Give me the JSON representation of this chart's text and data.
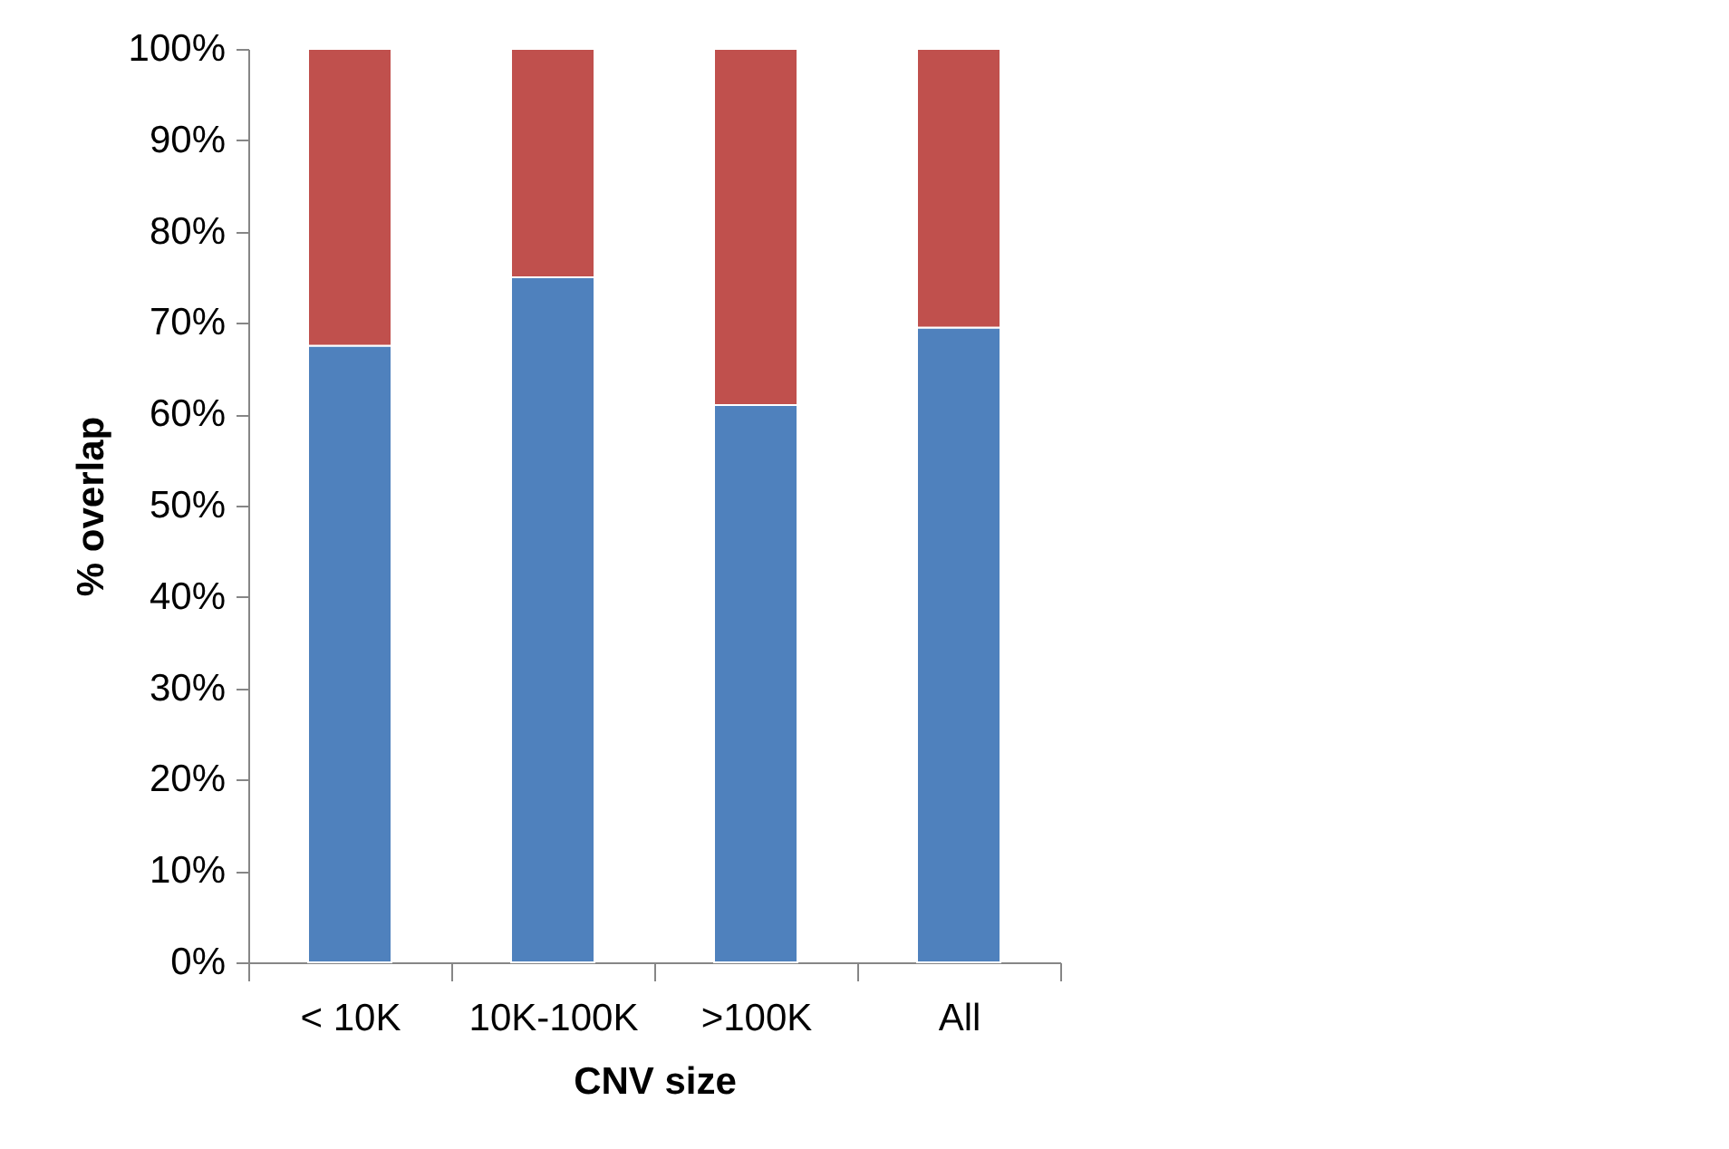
{
  "chart_data": {
    "type": "bar",
    "stacked": true,
    "xlabel": "CNV size",
    "ylabel": "% overlap",
    "categories": [
      "< 10K",
      "10K-100K",
      ">100K",
      "All"
    ],
    "series": [
      {
        "color": "#4f81bd",
        "values": [
          67.5,
          75,
          61,
          69.5
        ]
      },
      {
        "color": "#c0504d",
        "values": [
          32.5,
          25,
          39,
          30.5
        ]
      }
    ],
    "ylim": [
      0,
      100
    ],
    "yticks": [
      {
        "value": 0,
        "label": "0%"
      },
      {
        "value": 10,
        "label": "10%"
      },
      {
        "value": 20,
        "label": "20%"
      },
      {
        "value": 30,
        "label": "30%"
      },
      {
        "value": 40,
        "label": "40%"
      },
      {
        "value": 50,
        "label": "50%"
      },
      {
        "value": 60,
        "label": "60%"
      },
      {
        "value": 70,
        "label": "70%"
      },
      {
        "value": 80,
        "label": "80%"
      },
      {
        "value": 90,
        "label": "90%"
      },
      {
        "value": 100,
        "label": "100%"
      }
    ],
    "grid": false,
    "legend": false
  }
}
